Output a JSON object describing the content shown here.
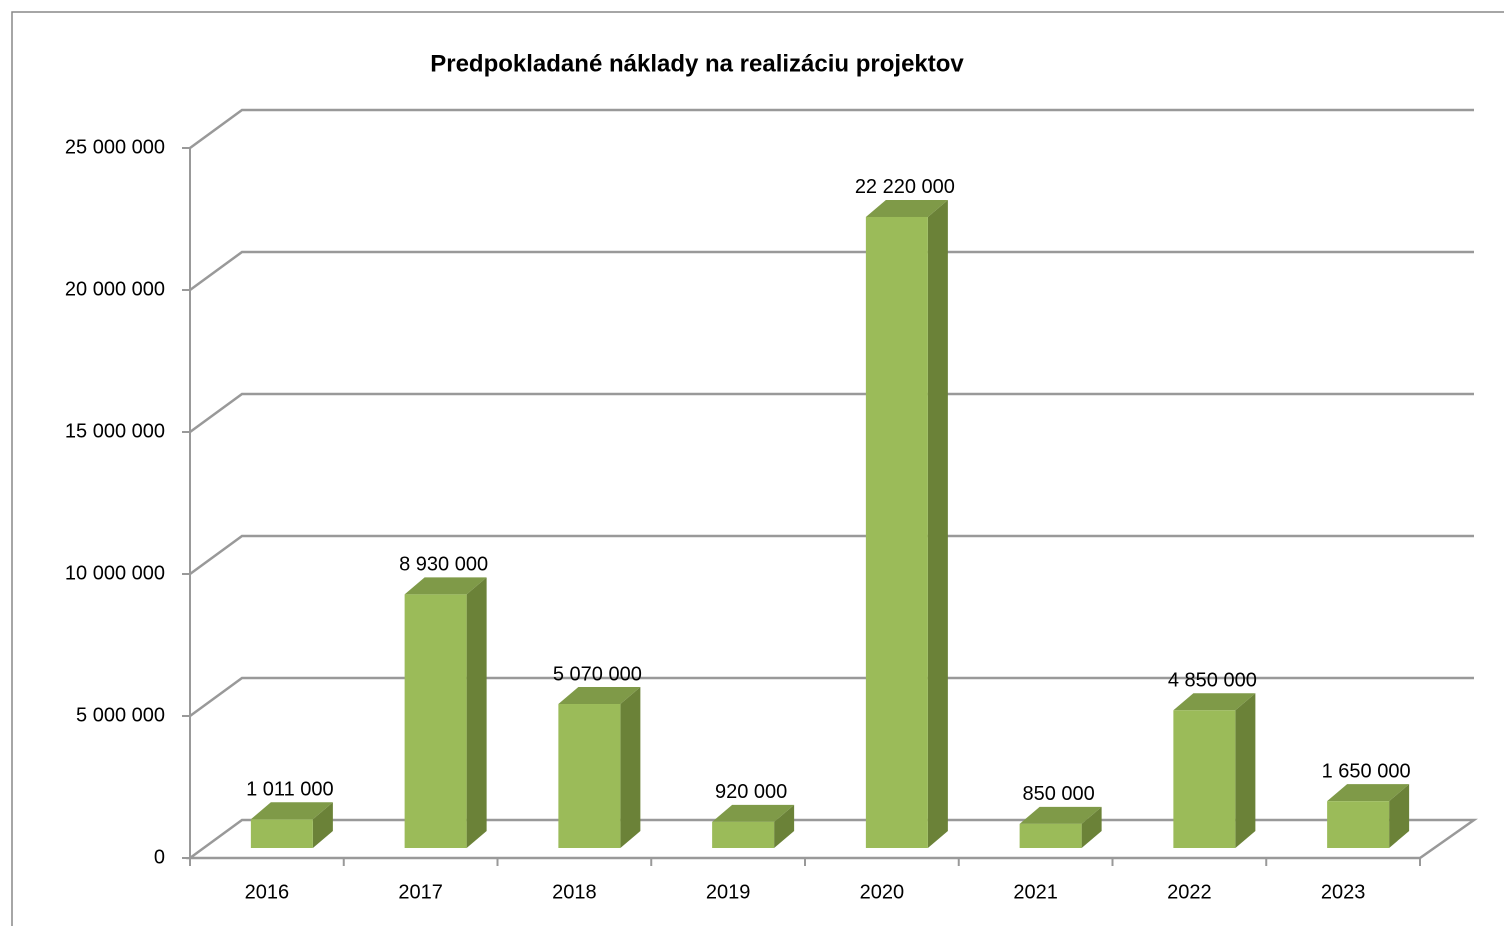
{
  "chart_data": {
    "type": "bar3d",
    "title": "Predpokladané náklady na realizáciu projektov",
    "categories": [
      "2016",
      "2017",
      "2018",
      "2019",
      "2020",
      "2021",
      "2022",
      "2023"
    ],
    "values": [
      1011000,
      8930000,
      5070000,
      920000,
      22220000,
      850000,
      4850000,
      1650000
    ],
    "value_labels": [
      "1 011 000",
      "8 930 000",
      "5 070 000",
      "920 000",
      "22 220 000",
      "850 000",
      "4 850 000",
      "1 650 000"
    ],
    "color": "#9bbb59",
    "ylim": [
      0,
      25000000
    ],
    "yticks": [
      0,
      {
        "value": 5000000,
        "label": "5 000 000"
      },
      {
        "value": 10000000,
        "label": "10 000 000"
      },
      {
        "value": 15000000,
        "label": "15 000 000"
      },
      {
        "value": 20000000,
        "label": "20 000 000"
      },
      {
        "value": 25000000,
        "label": "25 000 000"
      }
    ],
    "grid": true
  }
}
